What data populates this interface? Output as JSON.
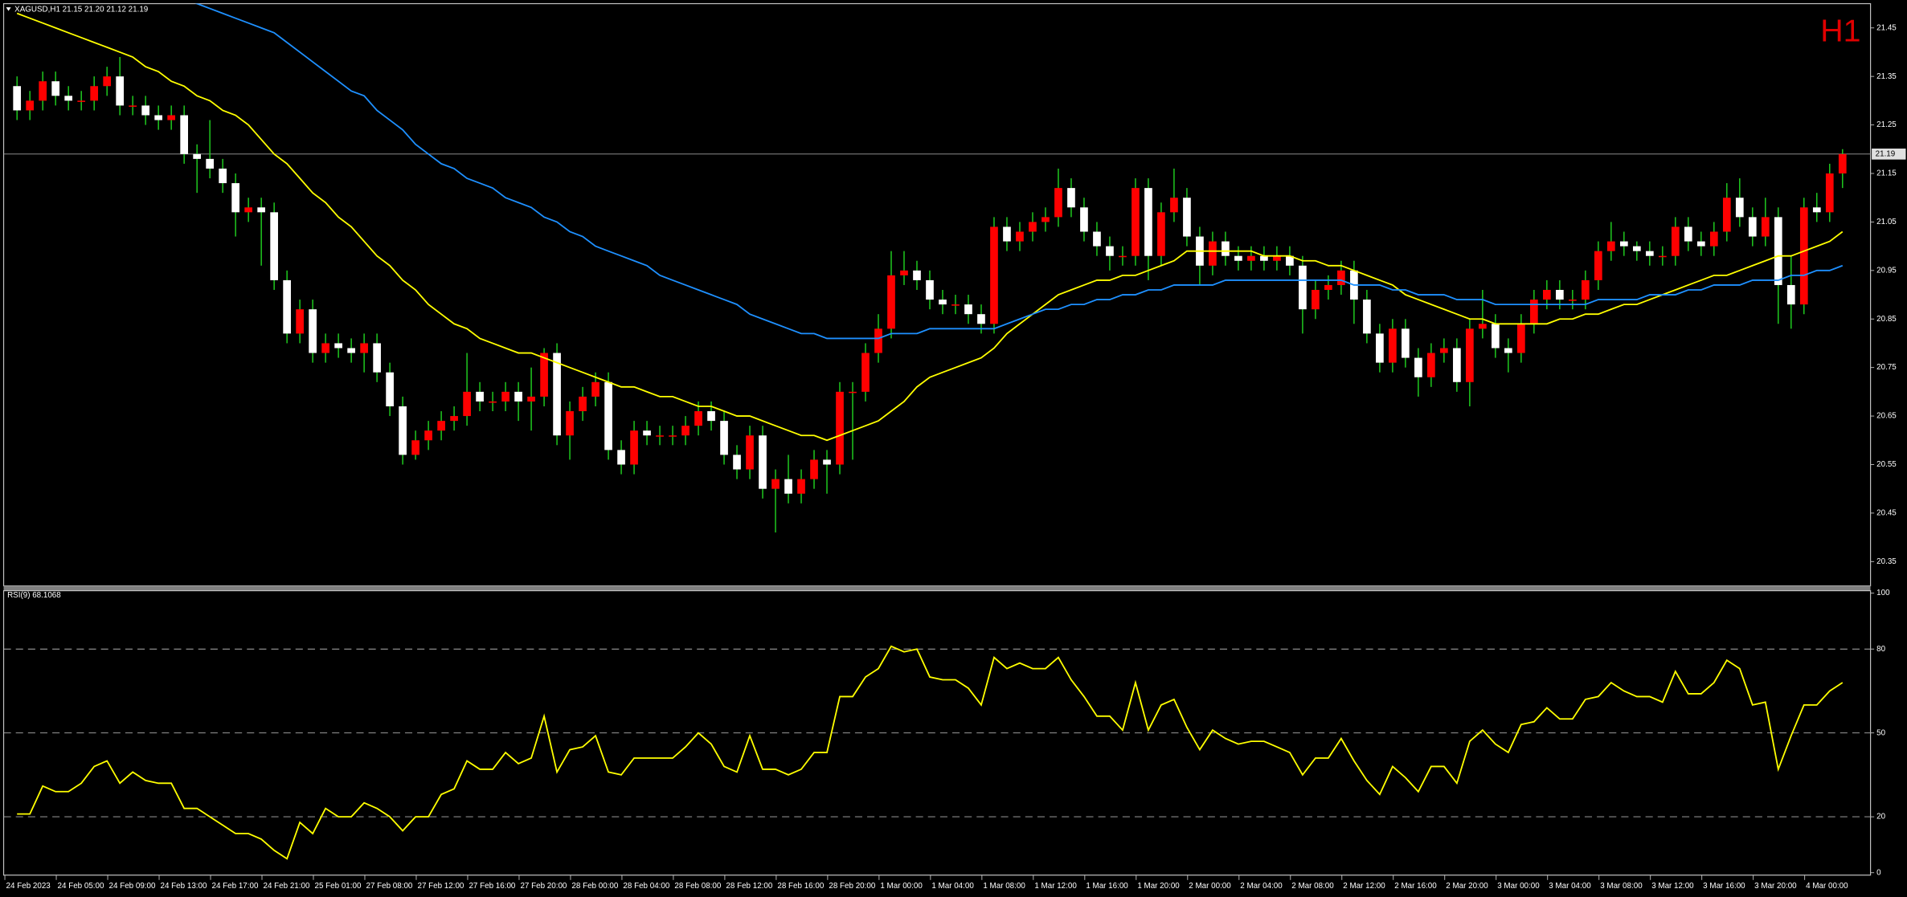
{
  "chart_data": [
    {
      "type": "candlestick",
      "header": "XAGUSD,H1  21.15 21.20 21.12 21.19",
      "timeframe": "H1",
      "current_price": 21.19,
      "up_color": "#ff0000",
      "down_color": "#ffffff",
      "wick_color": "#22dd22",
      "ylim": [
        20.3,
        21.5
      ],
      "yticks": [
        {
          "value": 21.45,
          "label": "21.45"
        },
        {
          "value": 21.35,
          "label": "21.35"
        },
        {
          "value": 21.25,
          "label": "21.25"
        },
        {
          "value": 21.15,
          "label": "21.15"
        },
        {
          "value": 21.05,
          "label": "21.05"
        },
        {
          "value": 20.95,
          "label": "20.95"
        },
        {
          "value": 20.85,
          "label": "20.85"
        },
        {
          "value": 20.75,
          "label": "20.75"
        },
        {
          "value": 20.65,
          "label": "20.65"
        },
        {
          "value": 20.55,
          "label": "20.55"
        },
        {
          "value": 20.45,
          "label": "20.45"
        },
        {
          "value": 20.35,
          "label": "20.35"
        }
      ],
      "categories": [
        "24 Feb 2023",
        null,
        null,
        null,
        "24 Feb 05:00",
        null,
        null,
        null,
        "24 Feb 09:00",
        null,
        null,
        null,
        "24 Feb 13:00",
        null,
        null,
        null,
        "24 Feb 17:00",
        null,
        null,
        null,
        "24 Feb 21:00",
        null,
        null,
        null,
        "25 Feb 01:00",
        null,
        null,
        null,
        "27 Feb 08:00",
        null,
        null,
        null,
        "27 Feb 12:00",
        null,
        null,
        null,
        "27 Feb 16:00",
        null,
        null,
        null,
        "27 Feb 20:00",
        null,
        null,
        null,
        "28 Feb 00:00",
        null,
        null,
        null,
        "28 Feb 04:00",
        null,
        null,
        null,
        "28 Feb 08:00",
        null,
        null,
        null,
        "28 Feb 12:00",
        null,
        null,
        null,
        "28 Feb 16:00",
        null,
        null,
        null,
        "28 Feb 20:00",
        null,
        null,
        null,
        "1 Mar 00:00",
        null,
        null,
        null,
        "1 Mar 04:00",
        null,
        null,
        null,
        "1 Mar 08:00",
        null,
        null,
        null,
        "1 Mar 12:00",
        null,
        null,
        null,
        "1 Mar 16:00",
        null,
        null,
        null,
        "1 Mar 20:00",
        null,
        null,
        null,
        "2 Mar 00:00",
        null,
        null,
        null,
        "2 Mar 04:00",
        null,
        null,
        null,
        "2 Mar 08:00",
        null,
        null,
        null,
        "2 Mar 12:00",
        null,
        null,
        null,
        "2 Mar 16:00",
        null,
        null,
        null,
        "2 Mar 20:00",
        null,
        null,
        null,
        "3 Mar 00:00",
        null,
        null,
        null,
        "3 Mar 04:00",
        null,
        null,
        null,
        "3 Mar 08:00",
        null,
        null,
        null,
        "3 Mar 12:00",
        null,
        null,
        null,
        "3 Mar 16:00",
        null,
        null,
        null,
        "3 Mar 20:00",
        null,
        null,
        null,
        "4 Mar 00:00",
        null,
        null
      ],
      "open": [
        21.33,
        21.28,
        21.3,
        21.34,
        21.31,
        21.3,
        21.3,
        21.33,
        21.35,
        21.29,
        21.29,
        21.27,
        21.26,
        21.27,
        21.19,
        21.18,
        21.16,
        21.13,
        21.07,
        21.08,
        21.07,
        20.93,
        20.82,
        20.87,
        20.78,
        20.8,
        20.79,
        20.78,
        20.8,
        20.74,
        20.67,
        20.57,
        20.6,
        20.62,
        20.64,
        20.65,
        20.7,
        20.68,
        20.68,
        20.7,
        20.68,
        20.69,
        20.78,
        20.61,
        20.66,
        20.69,
        20.72,
        20.58,
        20.55,
        20.62,
        20.61,
        20.61,
        20.61,
        20.63,
        20.66,
        20.64,
        20.57,
        20.54,
        20.61,
        20.5,
        20.52,
        20.49,
        20.52,
        20.56,
        20.55,
        20.7,
        20.7,
        20.78,
        20.83,
        20.94,
        20.95,
        20.93,
        20.89,
        20.88,
        20.88,
        20.86,
        20.84,
        21.04,
        21.01,
        21.03,
        21.05,
        21.06,
        21.12,
        21.08,
        21.03,
        21.0,
        20.98,
        20.98,
        21.12,
        20.98,
        21.07,
        21.1,
        21.02,
        20.96,
        21.01,
        20.98,
        20.97,
        20.98,
        20.97,
        20.98,
        20.96,
        20.87,
        20.91,
        20.92,
        20.95,
        20.89,
        20.82,
        20.76,
        20.83,
        20.77,
        20.73,
        20.78,
        20.79,
        20.72,
        20.83,
        20.84,
        20.79,
        20.78,
        20.84,
        20.89,
        20.91,
        20.89,
        20.89,
        20.93,
        20.99,
        21.01,
        21.0,
        20.99,
        20.98,
        20.98,
        21.04,
        21.01,
        21.0,
        21.03,
        21.1,
        21.06,
        21.02,
        21.06,
        20.92,
        20.88,
        21.08,
        21.07,
        21.15
      ],
      "high": [
        21.35,
        21.32,
        21.36,
        21.36,
        21.33,
        21.32,
        21.35,
        21.37,
        21.39,
        21.31,
        21.31,
        21.29,
        21.29,
        21.29,
        21.21,
        21.26,
        21.18,
        21.15,
        21.1,
        21.1,
        21.09,
        20.95,
        20.89,
        20.89,
        20.82,
        20.82,
        20.81,
        20.82,
        20.82,
        20.76,
        20.69,
        20.62,
        20.64,
        20.66,
        20.67,
        20.78,
        20.72,
        20.7,
        20.72,
        20.72,
        20.75,
        20.79,
        20.8,
        20.68,
        20.71,
        20.74,
        20.74,
        20.6,
        20.64,
        20.64,
        20.63,
        20.63,
        20.65,
        20.68,
        20.68,
        20.66,
        20.59,
        20.63,
        20.63,
        20.54,
        20.57,
        20.54,
        20.58,
        20.58,
        20.72,
        20.72,
        20.8,
        20.86,
        20.99,
        20.99,
        20.97,
        20.95,
        20.91,
        20.9,
        20.9,
        20.88,
        21.06,
        21.06,
        21.05,
        21.07,
        21.08,
        21.16,
        21.14,
        21.1,
        21.05,
        21.02,
        21.0,
        21.14,
        21.14,
        21.09,
        21.16,
        21.12,
        21.04,
        21.03,
        21.03,
        21.0,
        21.0,
        21.0,
        21.0,
        21.0,
        20.98,
        20.93,
        20.94,
        20.97,
        20.97,
        20.91,
        20.84,
        20.85,
        20.85,
        20.79,
        20.8,
        20.81,
        20.81,
        20.85,
        20.91,
        20.86,
        20.81,
        20.86,
        20.91,
        20.93,
        20.93,
        20.91,
        20.95,
        21.01,
        21.05,
        21.03,
        21.01,
        21.01,
        21.0,
        21.06,
        21.06,
        21.03,
        21.05,
        21.13,
        21.14,
        21.08,
        21.1,
        21.08,
        20.98,
        21.1,
        21.11,
        21.17,
        21.2
      ],
      "low": [
        21.26,
        21.26,
        21.28,
        21.29,
        21.28,
        21.28,
        21.28,
        21.31,
        21.27,
        21.27,
        21.25,
        21.24,
        21.24,
        21.17,
        21.11,
        21.14,
        21.11,
        21.02,
        21.05,
        20.96,
        20.91,
        20.8,
        20.8,
        20.76,
        20.76,
        20.77,
        20.76,
        20.74,
        20.72,
        20.65,
        20.55,
        20.56,
        20.58,
        20.6,
        20.62,
        20.63,
        20.66,
        20.66,
        20.66,
        20.64,
        20.62,
        20.67,
        20.59,
        20.56,
        20.64,
        20.67,
        20.56,
        20.53,
        20.53,
        20.59,
        20.59,
        20.59,
        20.59,
        20.61,
        20.62,
        20.55,
        20.52,
        20.52,
        20.48,
        20.41,
        20.47,
        20.47,
        20.5,
        20.49,
        20.53,
        20.56,
        20.68,
        20.76,
        20.81,
        20.92,
        20.91,
        20.87,
        20.86,
        20.86,
        20.84,
        20.82,
        20.82,
        20.99,
        20.99,
        21.01,
        21.03,
        21.04,
        21.06,
        21.01,
        20.98,
        20.95,
        20.96,
        20.96,
        20.93,
        20.96,
        21.05,
        21.0,
        20.92,
        20.94,
        20.96,
        20.95,
        20.95,
        20.95,
        20.95,
        20.94,
        20.82,
        20.85,
        20.89,
        20.9,
        20.84,
        20.8,
        20.74,
        20.74,
        20.75,
        20.69,
        20.71,
        20.76,
        20.7,
        20.67,
        20.81,
        20.77,
        20.74,
        20.76,
        20.82,
        20.87,
        20.87,
        20.87,
        20.87,
        20.91,
        20.97,
        20.98,
        20.97,
        20.96,
        20.96,
        20.96,
        20.99,
        20.98,
        20.98,
        21.01,
        21.04,
        21.0,
        21.0,
        20.84,
        20.83,
        20.86,
        21.05,
        21.05,
        21.12
      ],
      "close": [
        21.28,
        21.3,
        21.34,
        21.31,
        21.3,
        21.3,
        21.33,
        21.35,
        21.29,
        21.29,
        21.27,
        21.26,
        21.27,
        21.19,
        21.18,
        21.16,
        21.13,
        21.07,
        21.08,
        21.07,
        20.93,
        20.82,
        20.87,
        20.78,
        20.8,
        20.79,
        20.78,
        20.8,
        20.74,
        20.67,
        20.57,
        20.6,
        20.62,
        20.64,
        20.65,
        20.7,
        20.68,
        20.68,
        20.7,
        20.68,
        20.69,
        20.78,
        20.61,
        20.66,
        20.69,
        20.72,
        20.58,
        20.55,
        20.62,
        20.61,
        20.61,
        20.61,
        20.63,
        20.66,
        20.64,
        20.57,
        20.54,
        20.61,
        20.5,
        20.52,
        20.49,
        20.52,
        20.56,
        20.55,
        20.7,
        20.7,
        20.78,
        20.83,
        20.94,
        20.95,
        20.93,
        20.89,
        20.88,
        20.88,
        20.86,
        20.84,
        21.04,
        21.01,
        21.03,
        21.05,
        21.06,
        21.12,
        21.08,
        21.03,
        21.0,
        20.98,
        20.98,
        21.12,
        20.98,
        21.07,
        21.1,
        21.02,
        20.96,
        21.01,
        20.98,
        20.97,
        20.98,
        20.97,
        20.98,
        20.96,
        20.87,
        20.91,
        20.92,
        20.95,
        20.89,
        20.82,
        20.76,
        20.83,
        20.77,
        20.73,
        20.78,
        20.79,
        20.72,
        20.83,
        20.84,
        20.79,
        20.78,
        20.84,
        20.89,
        20.91,
        20.89,
        20.89,
        20.93,
        20.99,
        21.01,
        21.0,
        20.99,
        20.98,
        20.98,
        21.04,
        21.01,
        21.0,
        21.03,
        21.1,
        21.06,
        21.02,
        21.06,
        20.92,
        20.88,
        21.08,
        21.07,
        21.15,
        21.19
      ],
      "series": [
        {
          "color": "#ffff00",
          "values": [
            21.48,
            21.47,
            21.46,
            21.45,
            21.44,
            21.43,
            21.42,
            21.41,
            21.4,
            21.39,
            21.37,
            21.36,
            21.34,
            21.33,
            21.31,
            21.3,
            21.28,
            21.27,
            21.25,
            21.22,
            21.19,
            21.17,
            21.14,
            21.11,
            21.09,
            21.06,
            21.04,
            21.01,
            20.98,
            20.96,
            20.93,
            20.91,
            20.88,
            20.86,
            20.84,
            20.83,
            20.81,
            20.8,
            20.79,
            20.78,
            20.78,
            20.77,
            20.76,
            20.75,
            20.74,
            20.73,
            20.72,
            20.71,
            20.71,
            20.7,
            20.69,
            20.69,
            20.68,
            20.67,
            20.67,
            20.66,
            20.65,
            20.65,
            20.64,
            20.63,
            20.62,
            20.61,
            20.61,
            20.6,
            20.61,
            20.62,
            20.63,
            20.64,
            20.66,
            20.68,
            20.71,
            20.73,
            20.74,
            20.75,
            20.76,
            20.77,
            20.79,
            20.82,
            20.84,
            20.86,
            20.88,
            20.9,
            20.91,
            20.92,
            20.93,
            20.93,
            20.94,
            20.94,
            20.95,
            20.96,
            20.97,
            20.99,
            20.99,
            20.99,
            20.99,
            20.99,
            20.99,
            20.98,
            20.98,
            20.98,
            20.97,
            20.97,
            20.96,
            20.96,
            20.95,
            20.94,
            20.93,
            20.92,
            20.9,
            20.89,
            20.88,
            20.87,
            20.86,
            20.85,
            20.85,
            20.84,
            20.84,
            20.84,
            20.84,
            20.84,
            20.85,
            20.85,
            20.86,
            20.86,
            20.87,
            20.88,
            20.88,
            20.89,
            20.9,
            20.91,
            20.92,
            20.93,
            20.94,
            20.94,
            20.95,
            20.96,
            20.97,
            20.98,
            20.98,
            20.99,
            21.0,
            21.01,
            21.03
          ]
        },
        {
          "color": "#1e90ff",
          "values": [
            null,
            null,
            null,
            null,
            null,
            null,
            null,
            null,
            null,
            null,
            null,
            null,
            null,
            21.51,
            21.5,
            21.49,
            21.48,
            21.47,
            21.46,
            21.45,
            21.44,
            21.42,
            21.4,
            21.38,
            21.36,
            21.34,
            21.32,
            21.31,
            21.28,
            21.26,
            21.24,
            21.21,
            21.19,
            21.17,
            21.16,
            21.14,
            21.13,
            21.12,
            21.1,
            21.09,
            21.08,
            21.06,
            21.05,
            21.03,
            21.02,
            21.0,
            20.99,
            20.98,
            20.97,
            20.96,
            20.94,
            20.93,
            20.92,
            20.91,
            20.9,
            20.89,
            20.88,
            20.86,
            20.85,
            20.84,
            20.83,
            20.82,
            20.82,
            20.81,
            20.81,
            20.81,
            20.81,
            20.81,
            20.82,
            20.82,
            20.82,
            20.83,
            20.83,
            20.83,
            20.83,
            20.83,
            20.83,
            20.84,
            20.85,
            20.86,
            20.87,
            20.87,
            20.88,
            20.88,
            20.89,
            20.89,
            20.9,
            20.9,
            20.91,
            20.91,
            20.92,
            20.92,
            20.92,
            20.92,
            20.93,
            20.93,
            20.93,
            20.93,
            20.93,
            20.93,
            20.93,
            20.93,
            20.93,
            20.93,
            20.92,
            20.92,
            20.92,
            20.91,
            20.91,
            20.9,
            20.9,
            20.9,
            20.89,
            20.89,
            20.89,
            20.88,
            20.88,
            20.88,
            20.88,
            20.88,
            20.88,
            20.88,
            20.88,
            20.89,
            20.89,
            20.89,
            20.89,
            20.9,
            20.9,
            20.9,
            20.91,
            20.91,
            20.92,
            20.92,
            20.92,
            20.93,
            20.93,
            20.93,
            20.94,
            20.94,
            20.95,
            20.95,
            20.96
          ]
        }
      ]
    },
    {
      "type": "line",
      "label": "RSI(9) 68.1068",
      "color": "#ffff00",
      "ylim": [
        0,
        100
      ],
      "yticks": [
        0,
        20,
        50,
        80,
        100
      ],
      "values": [
        21,
        21,
        31,
        29,
        29,
        32,
        38,
        40,
        32,
        36,
        33,
        32,
        32,
        23,
        23,
        20,
        17,
        14,
        14,
        12,
        8,
        5,
        18,
        14,
        23,
        20,
        20,
        25,
        23,
        20,
        15,
        20,
        20,
        28,
        30,
        40,
        37,
        37,
        43,
        39,
        41,
        56,
        36,
        44,
        45,
        49,
        36,
        35,
        41,
        41,
        41,
        41,
        45,
        50,
        46,
        38,
        36,
        49,
        37,
        37,
        35,
        37,
        43,
        43,
        63,
        63,
        70,
        73,
        81,
        79,
        80,
        70,
        69,
        69,
        66,
        60,
        77,
        73,
        75,
        73,
        73,
        77,
        69,
        63,
        56,
        56,
        51,
        68,
        51,
        60,
        62,
        52,
        44,
        51,
        48,
        46,
        47,
        47,
        45,
        43,
        35,
        41,
        41,
        48,
        40,
        33,
        28,
        38,
        34,
        29,
        38,
        38,
        32,
        47,
        51,
        46,
        43,
        53,
        54,
        59,
        55,
        55,
        62,
        63,
        68,
        65,
        63,
        63,
        61,
        72,
        64,
        64,
        68,
        76,
        73,
        60,
        61,
        37,
        49,
        60,
        60,
        65,
        68
      ]
    }
  ]
}
